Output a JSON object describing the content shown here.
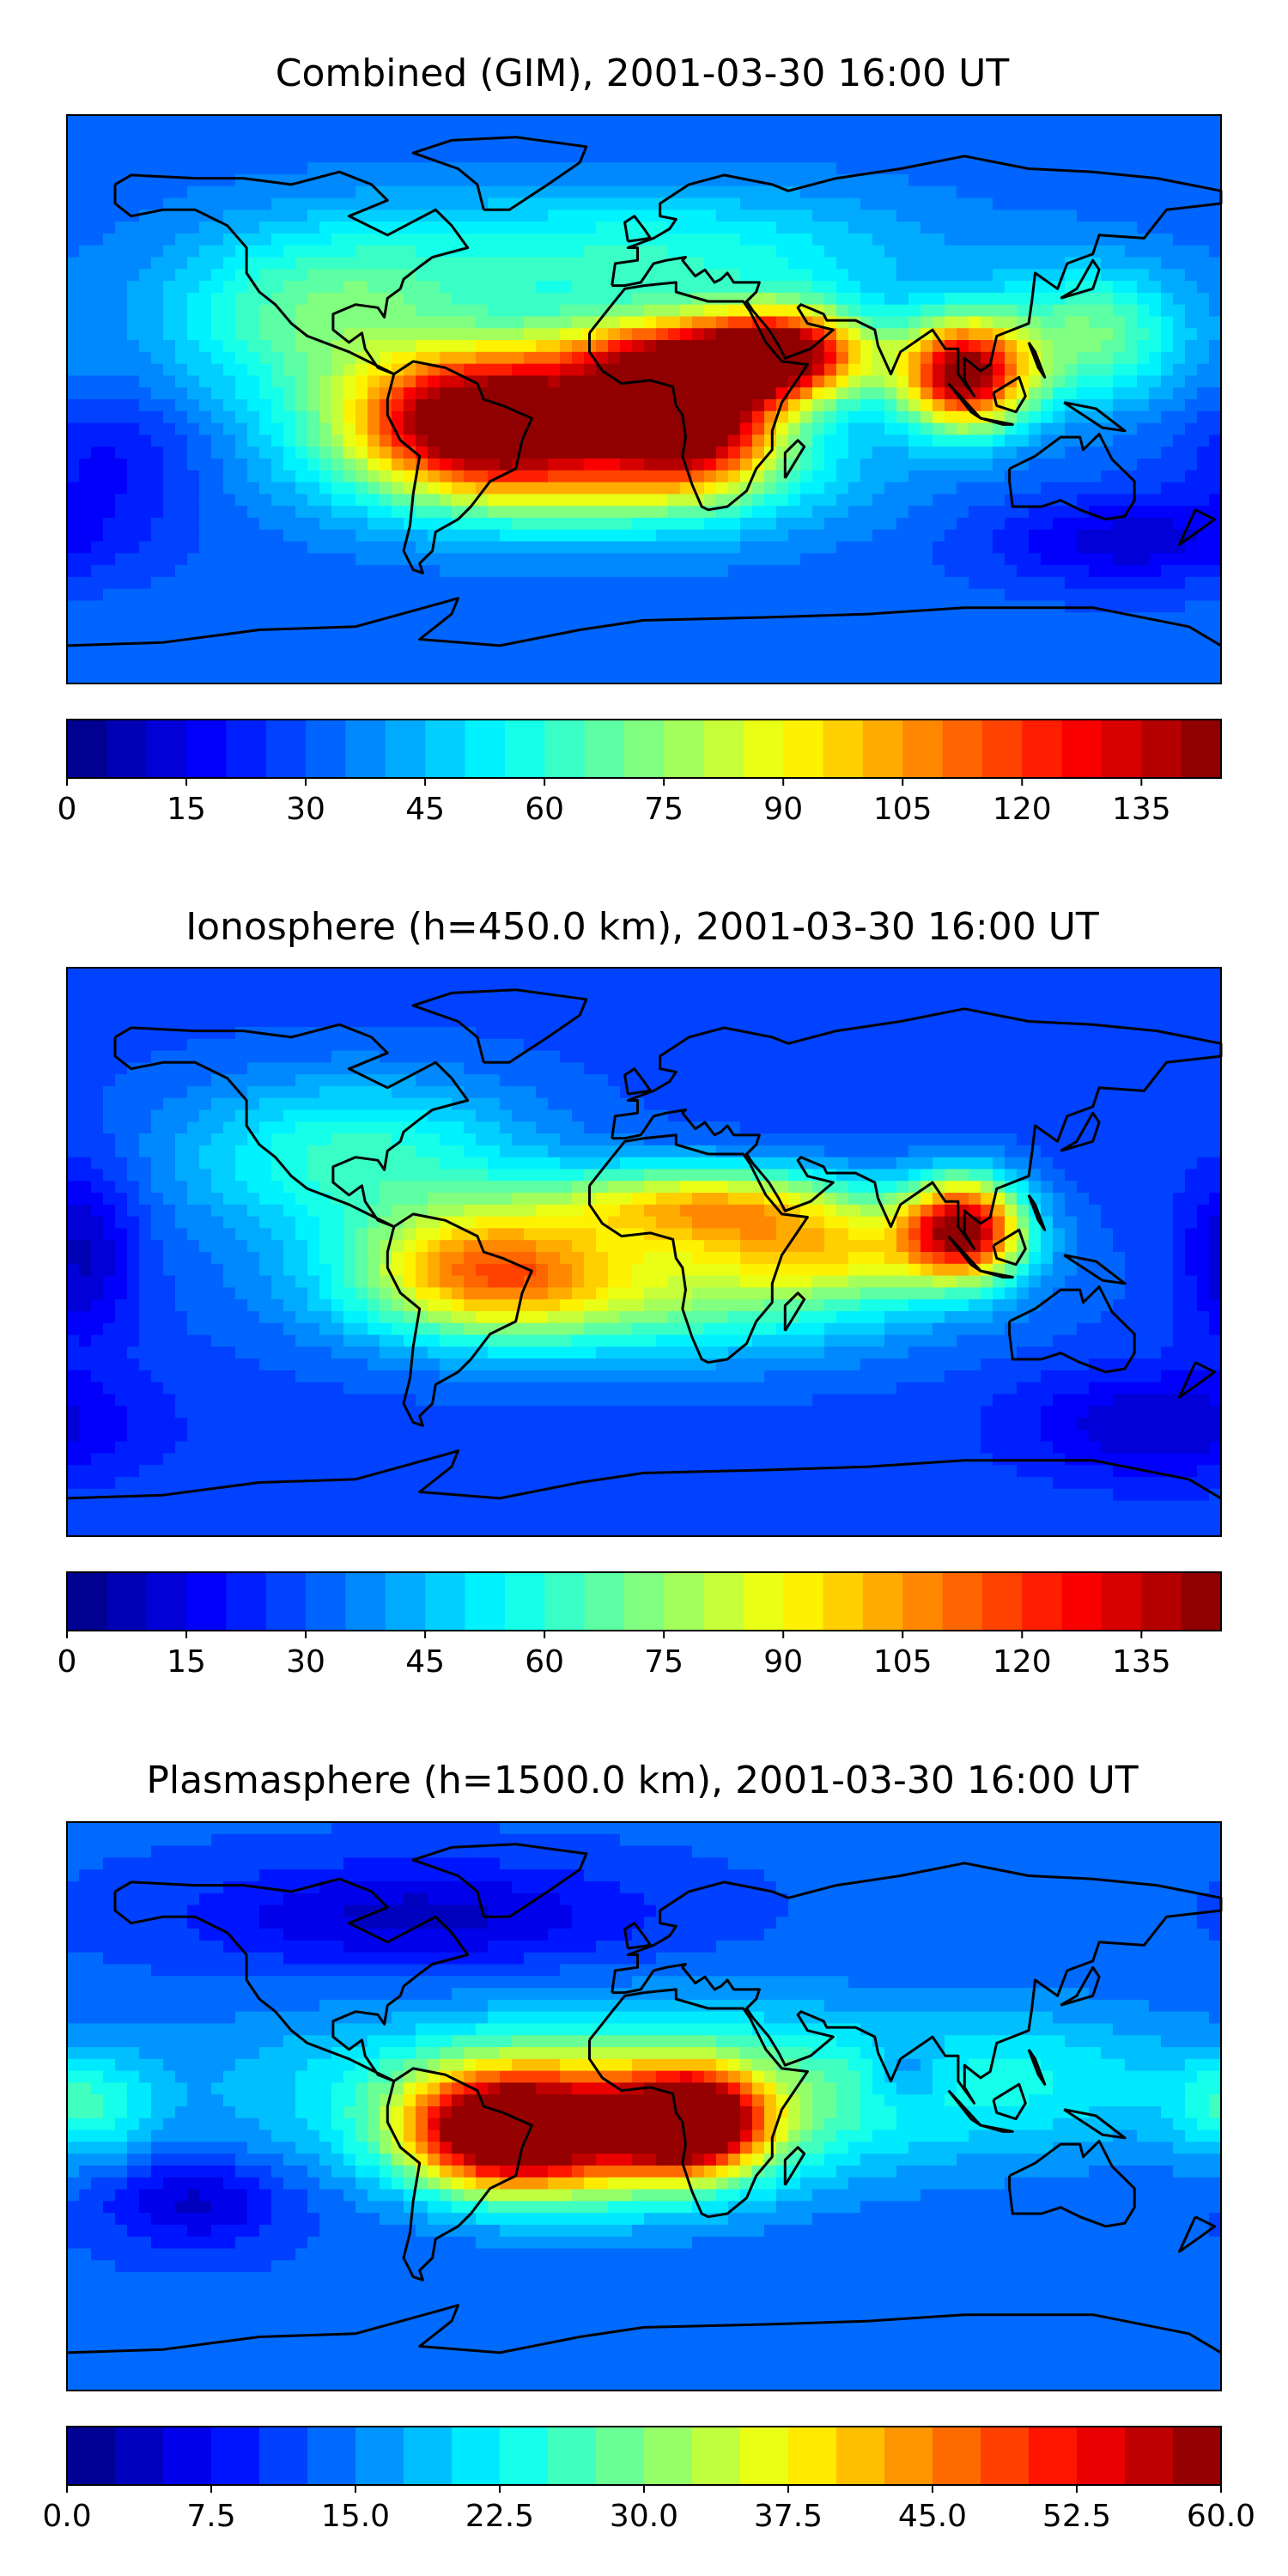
{
  "panels": [
    {
      "id": "combined",
      "title": "Combined (GIM), 2001-03-30 16:00 UT",
      "vmin": 0,
      "vmax": 145,
      "step": 5,
      "colorbar_ticks": [
        "0",
        "15",
        "30",
        "45",
        "60",
        "75",
        "90",
        "105",
        "120",
        "135"
      ],
      "colorbar_tick_values": [
        0,
        15,
        30,
        45,
        60,
        75,
        90,
        105,
        120,
        135
      ],
      "background": 32,
      "blobs": [
        {
          "lon": -50,
          "lat": -5,
          "value": 138,
          "spread_lon": 28,
          "spread_lat": 14
        },
        {
          "lon": 15,
          "lat": -5,
          "value": 130,
          "spread_lon": 18,
          "spread_lat": 14
        },
        {
          "lon": 10,
          "lat": 12,
          "value": 110,
          "spread_lon": 30,
          "spread_lat": 10
        },
        {
          "lon": 45,
          "lat": 15,
          "value": 118,
          "spread_lon": 18,
          "spread_lat": 10
        },
        {
          "lon": 100,
          "lat": 8,
          "value": 145,
          "spread_lon": 14,
          "spread_lat": 12
        },
        {
          "lon": -20,
          "lat": -20,
          "value": 90,
          "spread_lon": 50,
          "spread_lat": 15
        },
        {
          "lon": -100,
          "lat": 25,
          "value": 68,
          "spread_lon": 35,
          "spread_lat": 20
        },
        {
          "lon": 0,
          "lat": 45,
          "value": 60,
          "spread_lon": 60,
          "spread_lat": 15
        },
        {
          "lon": 140,
          "lat": 20,
          "value": 70,
          "spread_lon": 20,
          "spread_lat": 15
        },
        {
          "lon": -165,
          "lat": -20,
          "value": 18,
          "spread_lon": 20,
          "spread_lat": 15
        },
        {
          "lon": 150,
          "lat": -45,
          "value": 12,
          "spread_lon": 30,
          "spread_lat": 10
        }
      ]
    },
    {
      "id": "ionosphere",
      "title": "Ionosphere  (h=450.0 km), 2001-03-30 16:00 UT",
      "vmin": 0,
      "vmax": 145,
      "step": 5,
      "colorbar_ticks": [
        "0",
        "15",
        "30",
        "45",
        "60",
        "75",
        "90",
        "105",
        "120",
        "135"
      ],
      "colorbar_tick_values": [
        0,
        15,
        30,
        45,
        60,
        75,
        90,
        105,
        120,
        135
      ],
      "background": 28,
      "blobs": [
        {
          "lon": 100,
          "lat": 8,
          "value": 130,
          "spread_lon": 13,
          "spread_lat": 11
        },
        {
          "lon": 20,
          "lat": 15,
          "value": 90,
          "spread_lon": 35,
          "spread_lat": 9
        },
        {
          "lon": -50,
          "lat": -5,
          "value": 85,
          "spread_lon": 28,
          "spread_lat": 14
        },
        {
          "lon": 0,
          "lat": -12,
          "value": 72,
          "spread_lon": 60,
          "spread_lat": 15
        },
        {
          "lon": -90,
          "lat": 30,
          "value": 62,
          "spread_lon": 40,
          "spread_lat": 18
        },
        {
          "lon": 60,
          "lat": 0,
          "value": 70,
          "spread_lon": 30,
          "spread_lat": 10
        },
        {
          "lon": -175,
          "lat": 0,
          "value": 8,
          "spread_lon": 12,
          "spread_lat": 20
        },
        {
          "lon": 160,
          "lat": -55,
          "value": 10,
          "spread_lon": 30,
          "spread_lat": 12
        }
      ]
    },
    {
      "id": "plasmasphere",
      "title": "Plasmasphere (h=1500.0 km), 2001-03-30 16:00 UT",
      "vmin": 0,
      "vmax": 60,
      "step": 2.5,
      "colorbar_ticks": [
        "0.0",
        "7.5",
        "15.0",
        "22.5",
        "30.0",
        "37.5",
        "45.0",
        "52.5",
        "60.0"
      ],
      "colorbar_tick_values": [
        0,
        7.5,
        15,
        22.5,
        30,
        37.5,
        45,
        52.5,
        60
      ],
      "background": 13,
      "blobs": [
        {
          "lon": 15,
          "lat": -5,
          "value": 56,
          "spread_lon": 14,
          "spread_lat": 10
        },
        {
          "lon": -45,
          "lat": -8,
          "value": 50,
          "spread_lon": 20,
          "spread_lat": 12
        },
        {
          "lon": -15,
          "lat": -10,
          "value": 38,
          "spread_lon": 35,
          "spread_lat": 15
        },
        {
          "lon": 0,
          "lat": 5,
          "value": 30,
          "spread_lon": 80,
          "spread_lat": 18
        },
        {
          "lon": -175,
          "lat": 0,
          "value": 24,
          "spread_lon": 15,
          "spread_lat": 12
        },
        {
          "lon": 130,
          "lat": 10,
          "value": 18,
          "spread_lon": 30,
          "spread_lat": 15
        },
        {
          "lon": 82,
          "lat": 10,
          "value": 6,
          "spread_lon": 8,
          "spread_lat": 8
        },
        {
          "lon": -70,
          "lat": 60,
          "value": 4,
          "spread_lon": 50,
          "spread_lat": 12
        },
        {
          "lon": -140,
          "lat": -30,
          "value": 4,
          "spread_lon": 20,
          "spread_lat": 10
        }
      ]
    }
  ],
  "colormap": "jet"
}
